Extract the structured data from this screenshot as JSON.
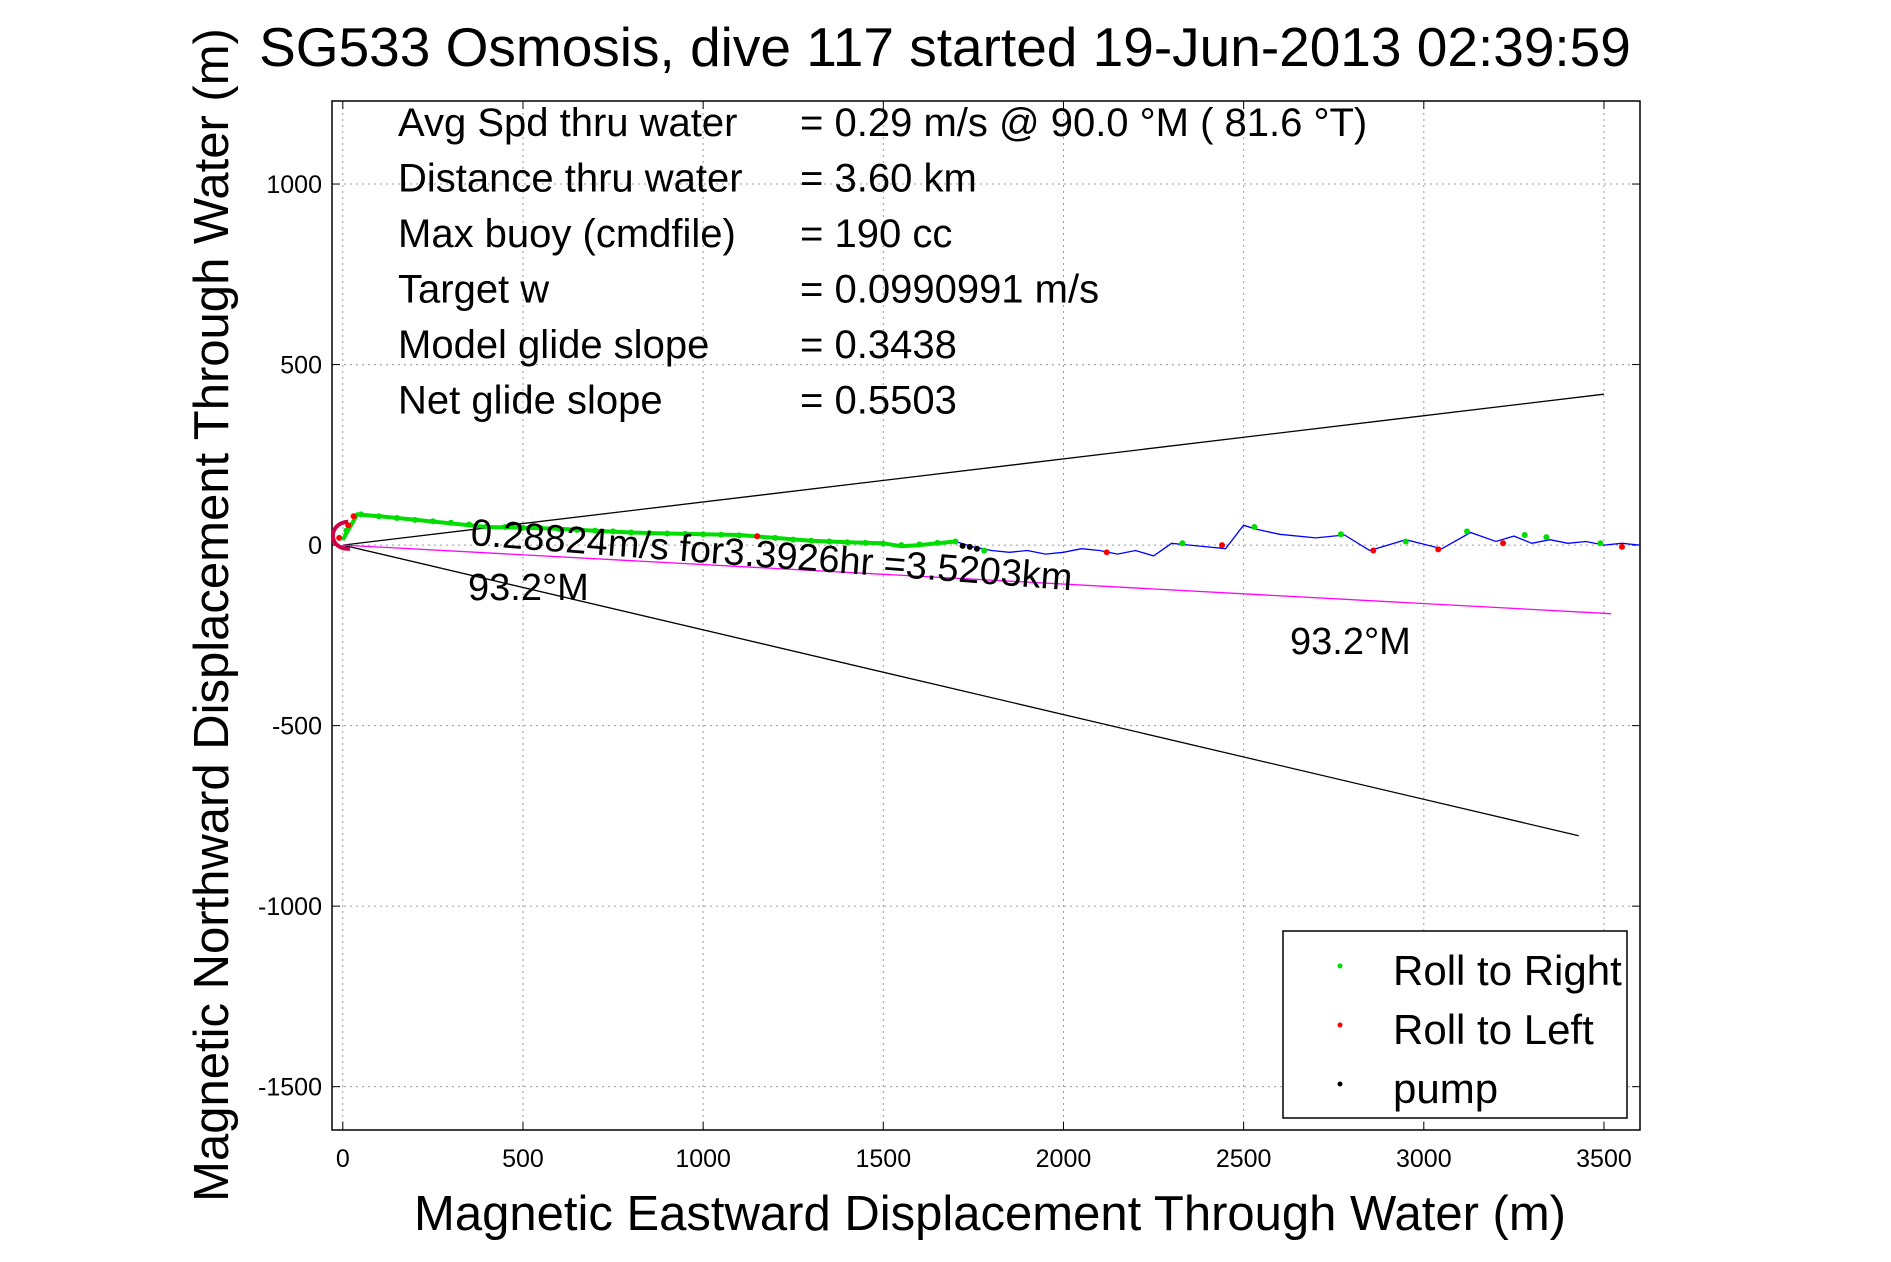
{
  "chart_data": {
    "type": "line",
    "title": "SG533 Osmosis, dive 117 started 19-Jun-2013 02:39:59",
    "xlabel": "Magnetic Eastward Displacement Through Water (m)",
    "ylabel": "Magnetic Northward Displacement Through Water (m)",
    "xlim": [
      -30,
      3600
    ],
    "ylim": [
      -1620,
      1230
    ],
    "xticks": [
      0,
      500,
      1000,
      1500,
      2000,
      2500,
      3000,
      3500
    ],
    "yticks": [
      1000,
      500,
      0,
      -500,
      -1000,
      -1500
    ],
    "grid": true,
    "info_lines": [
      {
        "label": "Avg Spd thru water",
        "value": "=  0.29 m/s @  90.0 °M ( 81.6 °T)"
      },
      {
        "label": "Distance thru water",
        "value": "=  3.60 km"
      },
      {
        "label": "Max buoy (cmdfile)",
        "value": "= 190 cc"
      },
      {
        "label": "Target w",
        "value": "= 0.0990991 m/s"
      },
      {
        "label": "Model glide slope",
        "value": "= 0.3438"
      },
      {
        "label": "Net glide slope",
        "value": "= 0.5503"
      }
    ],
    "annotations": {
      "speed_text": "0.28824m/s for3.3926hr =3.5203km",
      "heading_near": "93.2°M",
      "heading_far": "93.2°M"
    },
    "reference_lines": [
      {
        "name": "upper-bound",
        "color": "#000000",
        "x": [
          0,
          3500
        ],
        "y": [
          0,
          418
        ]
      },
      {
        "name": "lower-bound",
        "color": "#000000",
        "x": [
          0,
          3430
        ],
        "y": [
          0,
          -805
        ]
      },
      {
        "name": "heading-line",
        "color": "#ff00ff",
        "x": [
          0,
          3520
        ],
        "y": [
          0,
          -190
        ]
      }
    ],
    "track": {
      "color": "#0000ff",
      "x": [
        0,
        40,
        100,
        200,
        300,
        400,
        500,
        600,
        700,
        800,
        900,
        1000,
        1100,
        1200,
        1300,
        1400,
        1500,
        1550,
        1600,
        1650,
        1700,
        1750,
        1800,
        1850,
        1900,
        1950,
        2000,
        2050,
        2100,
        2150,
        2200,
        2250,
        2300,
        2350,
        2400,
        2450,
        2500,
        2530,
        2600,
        2700,
        2780,
        2850,
        2950,
        3050,
        3130,
        3200,
        3250,
        3300,
        3350,
        3400,
        3450,
        3500,
        3550,
        3600
      ],
      "y": [
        15,
        85,
        80,
        70,
        60,
        50,
        48,
        45,
        40,
        35,
        32,
        30,
        28,
        20,
        12,
        8,
        5,
        -3,
        0,
        5,
        10,
        -5,
        -15,
        -20,
        -15,
        -25,
        -20,
        -10,
        -15,
        -25,
        -15,
        -30,
        5,
        0,
        -5,
        -10,
        55,
        45,
        30,
        20,
        28,
        -15,
        15,
        -10,
        35,
        10,
        25,
        5,
        15,
        5,
        10,
        0,
        5,
        0
      ]
    },
    "series": [
      {
        "name": "Roll to Right",
        "color": "#00dd00",
        "x": [
          10,
          50,
          100,
          150,
          200,
          250,
          300,
          350,
          400,
          450,
          500,
          550,
          600,
          650,
          700,
          750,
          800,
          850,
          900,
          950,
          1000,
          1050,
          1100,
          1150,
          1200,
          1250,
          1300,
          1350,
          1400,
          1450,
          1500,
          1550,
          1600,
          1650,
          1700,
          1780,
          2330,
          2530,
          2770,
          2950,
          3120,
          3280,
          3340,
          3490
        ],
        "y": [
          40,
          85,
          80,
          75,
          70,
          66,
          62,
          57,
          52,
          50,
          48,
          47,
          45,
          42,
          40,
          38,
          35,
          33,
          32,
          31,
          30,
          29,
          27,
          24,
          20,
          15,
          12,
          10,
          8,
          6,
          4,
          0,
          2,
          6,
          10,
          -15,
          5,
          50,
          30,
          10,
          38,
          28,
          22,
          5
        ]
      },
      {
        "name": "Roll to Left",
        "color": "#ff0000",
        "x": [
          -10,
          15,
          30,
          1150,
          2120,
          2440,
          2860,
          3040,
          3220,
          3550
        ],
        "y": [
          20,
          55,
          80,
          25,
          -20,
          0,
          -15,
          -12,
          5,
          -5
        ]
      },
      {
        "name": "pump",
        "color": "#000000",
        "x": [
          1720,
          1740,
          1760
        ],
        "y": [
          -2,
          -5,
          -10
        ]
      }
    ],
    "legend_placement": "bottom-right"
  }
}
